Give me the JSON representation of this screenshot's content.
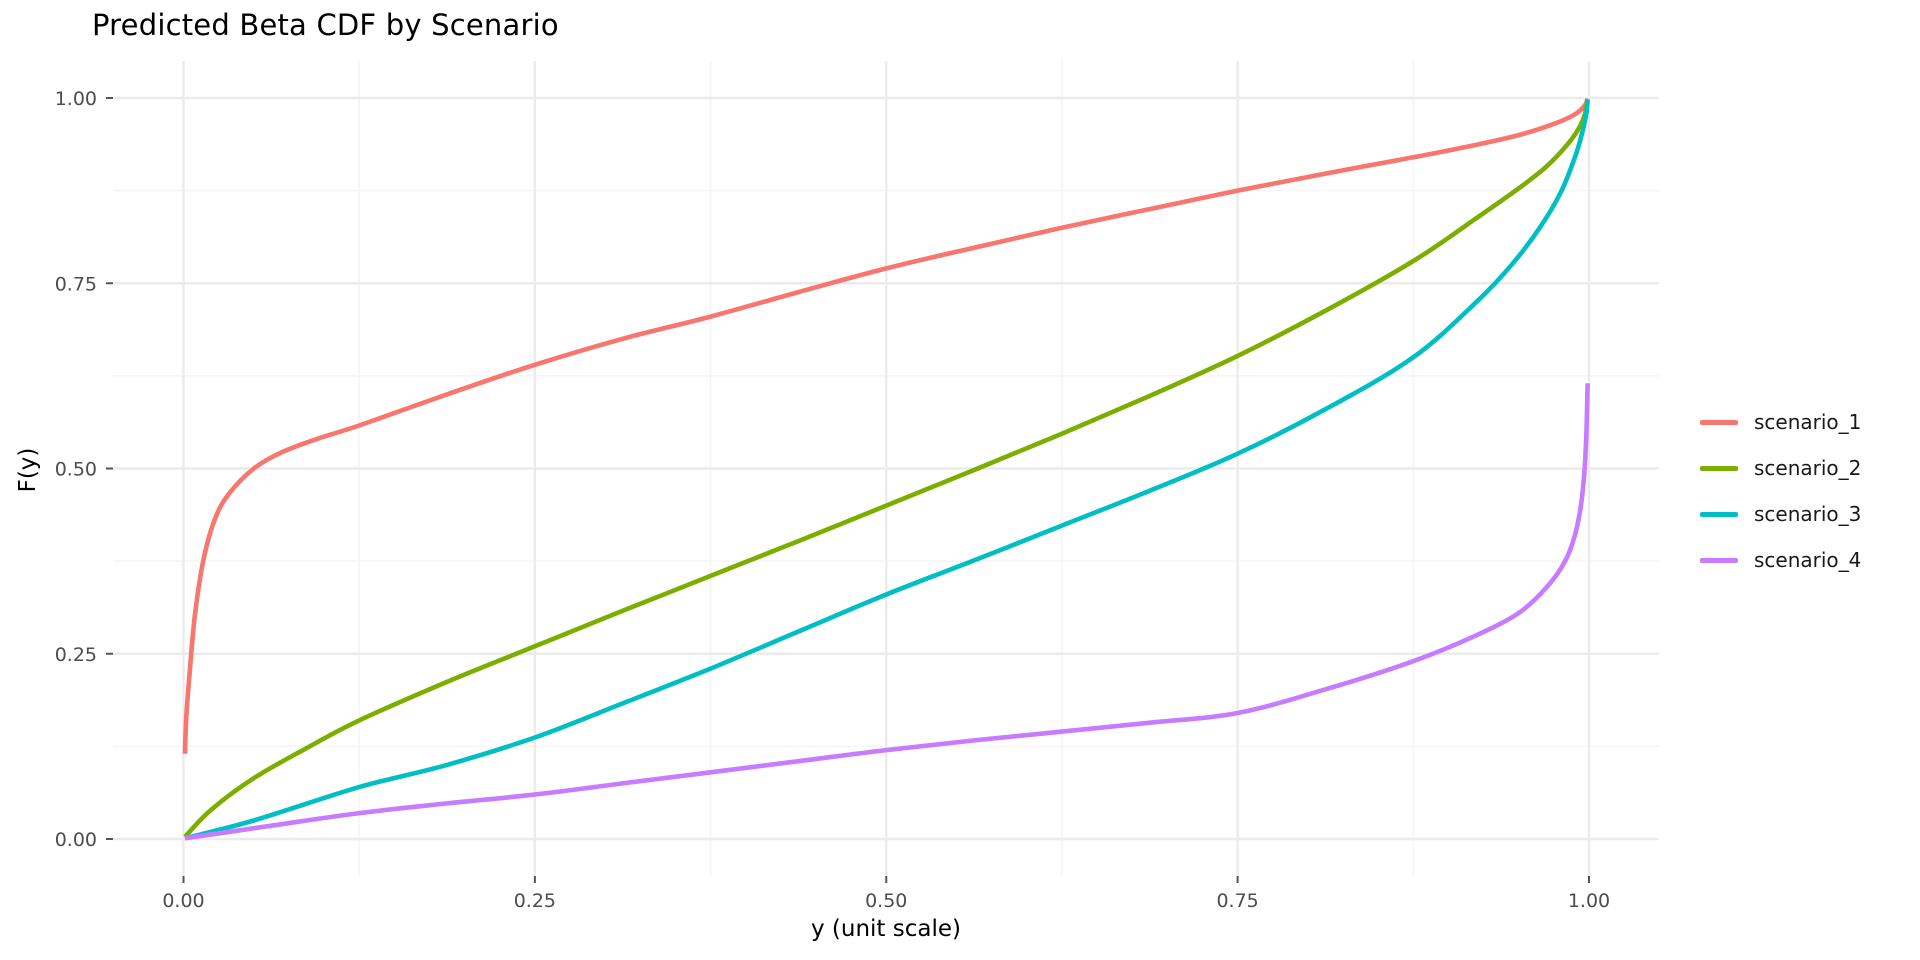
{
  "chart_data": {
    "type": "line",
    "title": "Predicted Beta CDF by Scenario",
    "xlabel": "y (unit scale)",
    "ylabel": "F(y)",
    "xlim": [
      0,
      1
    ],
    "ylim": [
      0,
      1
    ],
    "grid": "major and minor, light gray on white panel",
    "legend_position": "right",
    "x_ticks": [
      {
        "value": 0.0,
        "label": "0.00"
      },
      {
        "value": 0.25,
        "label": "0.25"
      },
      {
        "value": 0.5,
        "label": "0.50"
      },
      {
        "value": 0.75,
        "label": "0.75"
      },
      {
        "value": 1.0,
        "label": "1.00"
      }
    ],
    "y_ticks": [
      {
        "value": 0.0,
        "label": "0.00"
      },
      {
        "value": 0.25,
        "label": "0.25"
      },
      {
        "value": 0.5,
        "label": "0.50"
      },
      {
        "value": 0.75,
        "label": "0.75"
      },
      {
        "value": 1.0,
        "label": "1.00"
      }
    ],
    "minor_ticks": [
      0.125,
      0.375,
      0.625,
      0.875
    ],
    "colors": {
      "major_grid": "#EBEBEB",
      "minor_grid": "#F5F5F5",
      "tick_mark": "#555555",
      "tick_text": "#4D4D4D",
      "title_text": "#000000"
    },
    "series": [
      {
        "name": "scenario_1",
        "color": "#F8766D",
        "points": [
          [
            0.001,
            0.115
          ],
          [
            0.002,
            0.165
          ],
          [
            0.004,
            0.215
          ],
          [
            0.008,
            0.3
          ],
          [
            0.014,
            0.375
          ],
          [
            0.022,
            0.43
          ],
          [
            0.032,
            0.465
          ],
          [
            0.05,
            0.5
          ],
          [
            0.07,
            0.522
          ],
          [
            0.095,
            0.54
          ],
          [
            0.125,
            0.558
          ],
          [
            0.1875,
            0.6
          ],
          [
            0.25,
            0.64
          ],
          [
            0.3125,
            0.675
          ],
          [
            0.375,
            0.705
          ],
          [
            0.4375,
            0.738
          ],
          [
            0.5,
            0.77
          ],
          [
            0.5625,
            0.798
          ],
          [
            0.625,
            0.825
          ],
          [
            0.6875,
            0.85
          ],
          [
            0.75,
            0.875
          ],
          [
            0.8125,
            0.898
          ],
          [
            0.875,
            0.92
          ],
          [
            0.92,
            0.937
          ],
          [
            0.95,
            0.95
          ],
          [
            0.975,
            0.965
          ],
          [
            0.99,
            0.978
          ],
          [
            0.997,
            0.99
          ],
          [
            0.999,
            0.999
          ]
        ]
      },
      {
        "name": "scenario_2",
        "color": "#7CAE00",
        "points": [
          [
            0.001,
            0.003
          ],
          [
            0.02,
            0.04
          ],
          [
            0.05,
            0.082
          ],
          [
            0.085,
            0.12
          ],
          [
            0.125,
            0.16
          ],
          [
            0.1875,
            0.212
          ],
          [
            0.25,
            0.26
          ],
          [
            0.3125,
            0.308
          ],
          [
            0.375,
            0.355
          ],
          [
            0.4375,
            0.402
          ],
          [
            0.5,
            0.45
          ],
          [
            0.5625,
            0.498
          ],
          [
            0.625,
            0.547
          ],
          [
            0.6875,
            0.598
          ],
          [
            0.75,
            0.652
          ],
          [
            0.8125,
            0.713
          ],
          [
            0.875,
            0.78
          ],
          [
            0.92,
            0.838
          ],
          [
            0.95,
            0.878
          ],
          [
            0.97,
            0.908
          ],
          [
            0.985,
            0.938
          ],
          [
            0.993,
            0.96
          ],
          [
            0.997,
            0.978
          ],
          [
            0.999,
            0.998
          ]
        ]
      },
      {
        "name": "scenario_3",
        "color": "#00BFC4",
        "points": [
          [
            0.001,
            0.001
          ],
          [
            0.05,
            0.025
          ],
          [
            0.125,
            0.07
          ],
          [
            0.1875,
            0.1
          ],
          [
            0.25,
            0.137
          ],
          [
            0.3125,
            0.183
          ],
          [
            0.375,
            0.23
          ],
          [
            0.4375,
            0.28
          ],
          [
            0.5,
            0.33
          ],
          [
            0.5625,
            0.376
          ],
          [
            0.625,
            0.423
          ],
          [
            0.6875,
            0.47
          ],
          [
            0.75,
            0.52
          ],
          [
            0.8125,
            0.58
          ],
          [
            0.875,
            0.65
          ],
          [
            0.92,
            0.725
          ],
          [
            0.945,
            0.775
          ],
          [
            0.965,
            0.825
          ],
          [
            0.98,
            0.873
          ],
          [
            0.99,
            0.92
          ],
          [
            0.995,
            0.952
          ],
          [
            0.998,
            0.978
          ],
          [
            0.999,
            0.998
          ]
        ]
      },
      {
        "name": "scenario_4",
        "color": "#C77CFF",
        "points": [
          [
            0.001,
            0.001
          ],
          [
            0.0625,
            0.018
          ],
          [
            0.125,
            0.035
          ],
          [
            0.1875,
            0.048
          ],
          [
            0.25,
            0.06
          ],
          [
            0.3125,
            0.075
          ],
          [
            0.375,
            0.09
          ],
          [
            0.4375,
            0.105
          ],
          [
            0.5,
            0.12
          ],
          [
            0.5625,
            0.133
          ],
          [
            0.625,
            0.145
          ],
          [
            0.6875,
            0.157
          ],
          [
            0.75,
            0.17
          ],
          [
            0.8125,
            0.202
          ],
          [
            0.875,
            0.24
          ],
          [
            0.92,
            0.275
          ],
          [
            0.95,
            0.305
          ],
          [
            0.97,
            0.34
          ],
          [
            0.983,
            0.375
          ],
          [
            0.99,
            0.41
          ],
          [
            0.994,
            0.447
          ],
          [
            0.9965,
            0.49
          ],
          [
            0.998,
            0.54
          ],
          [
            0.999,
            0.615
          ]
        ]
      }
    ],
    "legend": [
      {
        "label": "scenario_1",
        "color": "#F8766D"
      },
      {
        "label": "scenario_2",
        "color": "#7CAE00"
      },
      {
        "label": "scenario_3",
        "color": "#00BFC4"
      },
      {
        "label": "scenario_4",
        "color": "#C77CFF"
      }
    ]
  }
}
